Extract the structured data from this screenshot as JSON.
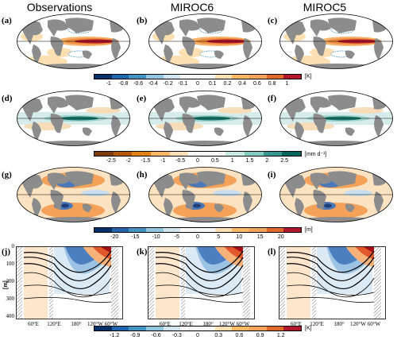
{
  "columns": [
    "Observations",
    "MIROC6",
    "MIROC5"
  ],
  "panel_labels": {
    "row1": [
      "(a)",
      "(b)",
      "(c)"
    ],
    "row2": [
      "(d)",
      "(e)",
      "(f)"
    ],
    "row3": [
      "(g)",
      "(h)",
      "(i)"
    ],
    "row4": [
      "(j)",
      "(k)",
      "(l)"
    ]
  },
  "colorbars": [
    {
      "ticks": [
        "-1",
        "-0.8",
        "-0.6",
        "-0.4",
        "-0.2",
        "-0.1",
        "0",
        "0.1",
        "0.2",
        "0.4",
        "0.6",
        "0.8",
        "1"
      ],
      "unit": "[K]",
      "palette": "bwr"
    },
    {
      "ticks": [
        "-2.5",
        "-2",
        "-1.5",
        "-1",
        "-0.5",
        "0",
        "0.5",
        "1",
        "1.5",
        "2",
        "2.5"
      ],
      "unit": "[mm d⁻¹]",
      "palette": "brgr"
    },
    {
      "ticks": [
        "-20",
        "-15",
        "-10",
        "-5",
        "0",
        "5",
        "10",
        "15",
        "20"
      ],
      "unit": "[m]",
      "palette": "bwr"
    },
    {
      "ticks": [
        "-1.2",
        "-0.9",
        "-0.6",
        "-0.3",
        "0",
        "0.3",
        "0.6",
        "0.9",
        "1.2"
      ],
      "unit": "[K]",
      "palette": "bwr"
    }
  ],
  "section": {
    "ylabel": "[m]",
    "yticks": [
      "0",
      "100",
      "200",
      "300",
      "400"
    ],
    "xticks_first": [
      "60°E",
      "120°E",
      "180°",
      "120°W",
      "60°W"
    ],
    "xticks": [
      "60°E",
      "120°E",
      "180°",
      "120°W",
      "60°W"
    ]
  },
  "colors": {
    "land": "#8c8c8c",
    "warm_dark": "#b2182b",
    "warm": "#ef8a3c",
    "warm_light": "#fde0b2",
    "cool": "#4393c3",
    "cool_light": "#d1e5f0",
    "green": "#1a7a6e"
  }
}
